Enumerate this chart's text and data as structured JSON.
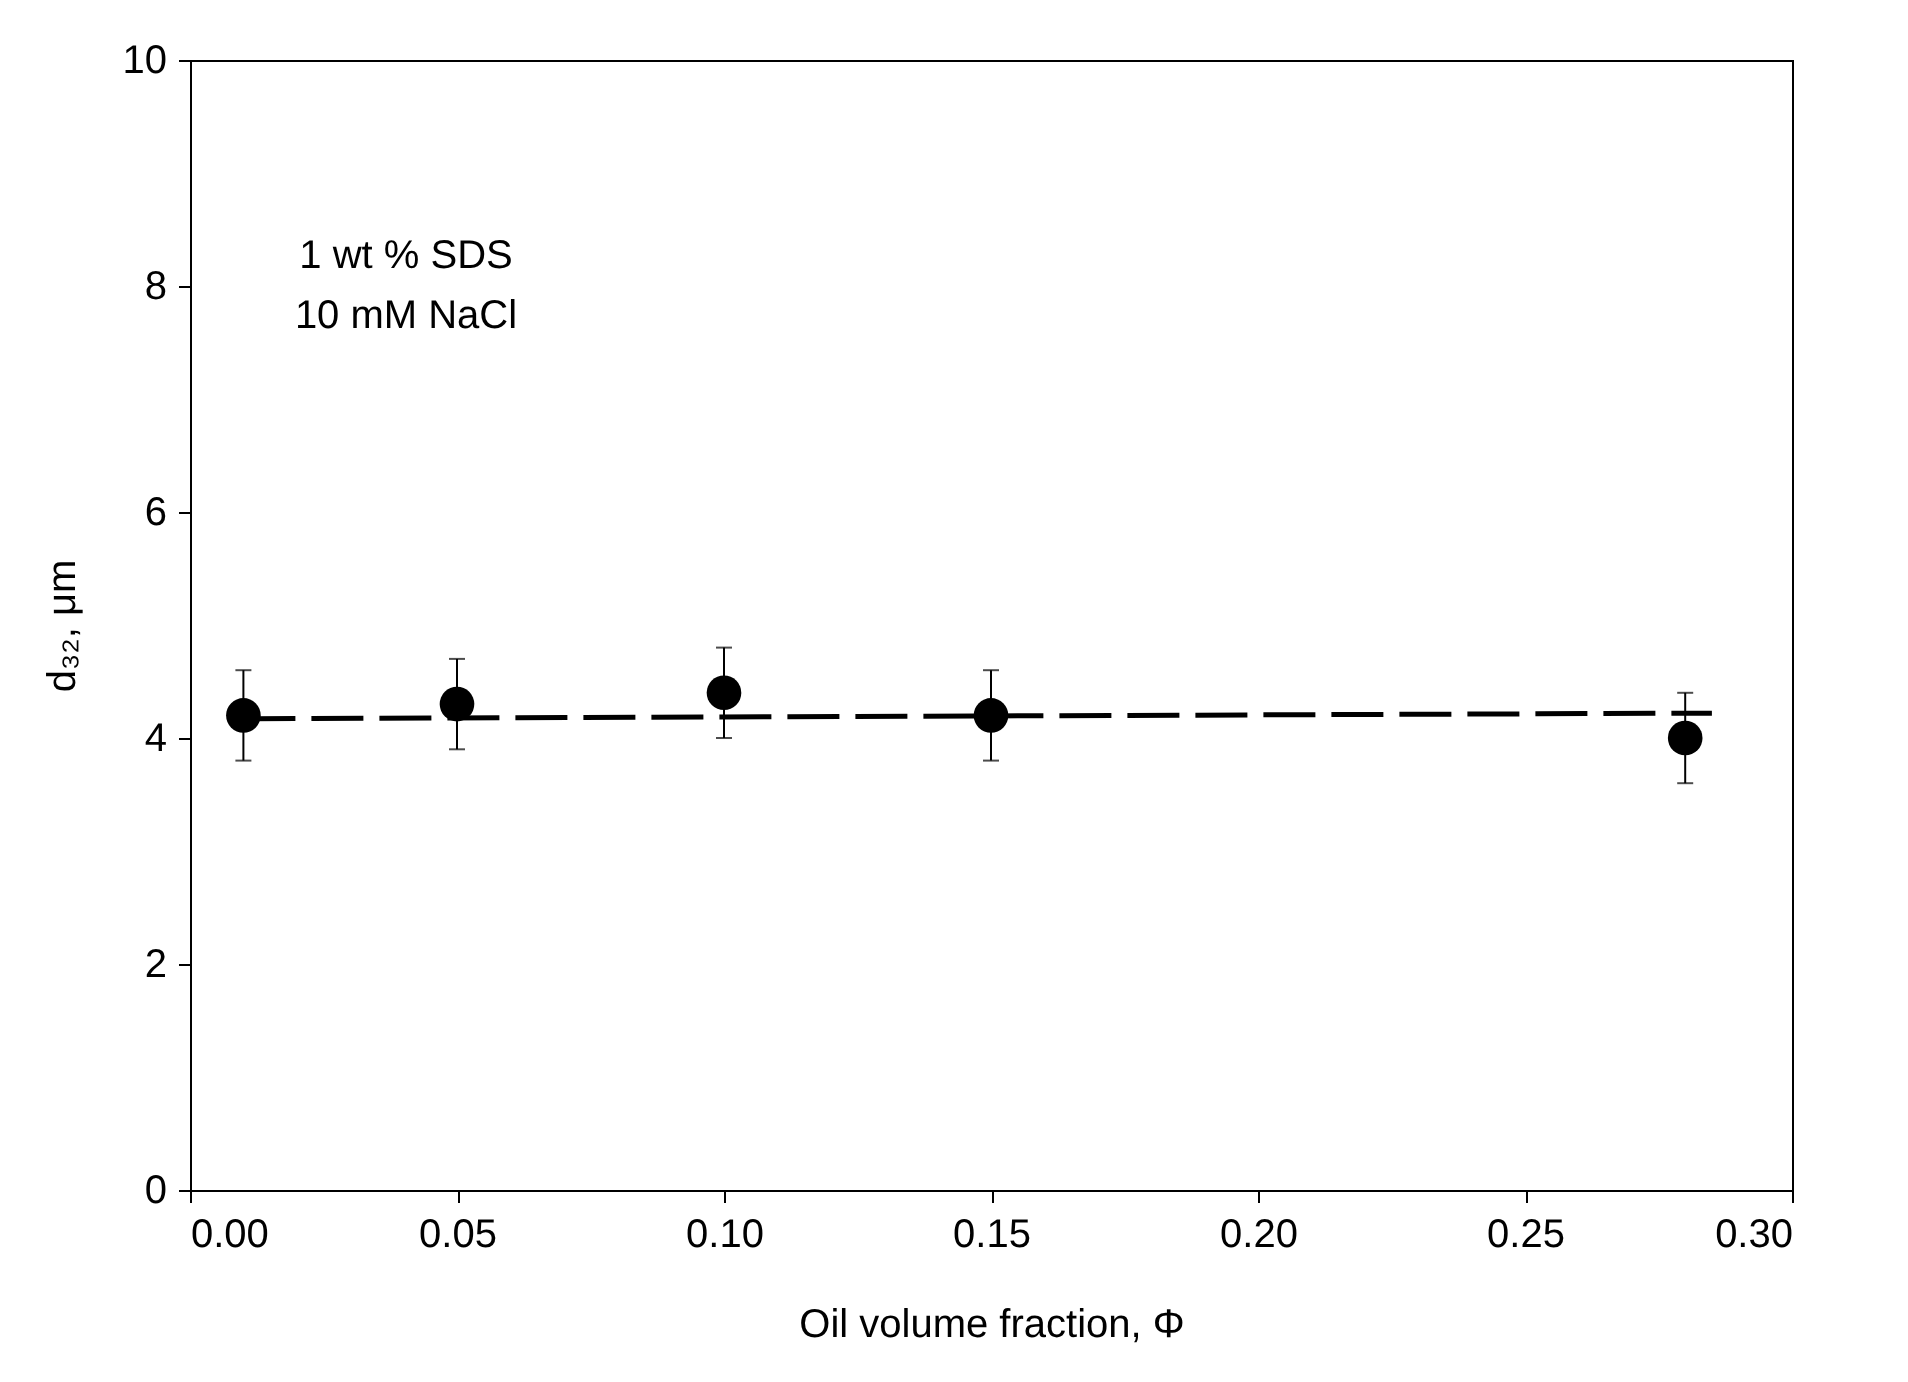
{
  "chart_data": {
    "type": "scatter",
    "xlabel": "Oil volume fraction, Φ",
    "ylabel": "d₃₂, μm",
    "annotations": [
      "1 wt % SDS",
      "10 mM NaCl"
    ],
    "xlim": [
      0,
      0.3
    ],
    "xticks": [
      {
        "value": 0,
        "label": "0.00"
      },
      {
        "value": 0.05,
        "label": "0.05"
      },
      {
        "value": 0.1,
        "label": "0.10"
      },
      {
        "value": 0.15,
        "label": "0.15"
      },
      {
        "value": 0.2,
        "label": "0.20"
      },
      {
        "value": 0.25,
        "label": "0.25"
      },
      {
        "value": 0.3,
        "label": "0.30"
      }
    ],
    "ylim": [
      0,
      10
    ],
    "yticks": [
      0,
      2,
      4,
      6,
      8,
      10
    ],
    "grid": false,
    "series": [
      {
        "color": "#000000",
        "marker": "circle",
        "x": [
          0.01,
          0.05,
          0.1,
          0.15,
          0.28
        ],
        "values": [
          4.2,
          4.3,
          4.4,
          4.2,
          4.0
        ],
        "errors": [
          0.4,
          0.4,
          0.4,
          0.4,
          0.4
        ]
      },
      {
        "type": "line",
        "color": "#000000",
        "line_style": "dashed",
        "marker": "none",
        "x": [
          0.01,
          0.285
        ],
        "values": [
          4.17,
          4.22
        ]
      }
    ]
  }
}
